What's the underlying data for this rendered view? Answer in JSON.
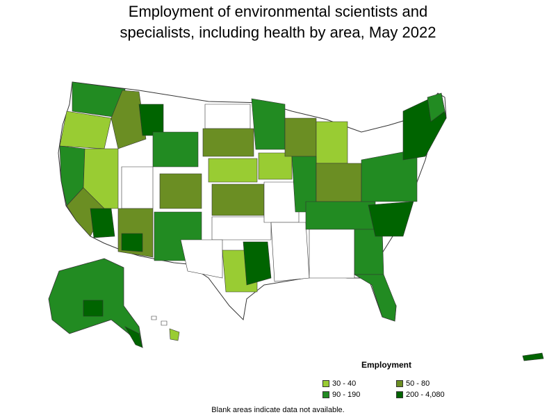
{
  "title_line1": "Employment of environmental scientists and",
  "title_line2": "specialists, including health by area, May 2022",
  "legend": {
    "title": "Employment",
    "items": [
      {
        "label": "30 - 40",
        "color": "#99cc33"
      },
      {
        "label": "50 - 80",
        "color": "#6b8e23"
      },
      {
        "label": "90 - 190",
        "color": "#228b22"
      },
      {
        "label": "200 - 4,080",
        "color": "#006400"
      }
    ]
  },
  "note": "Blank areas indicate data not available.",
  "colors": {
    "blank": "#ffffff",
    "border": "#333333"
  }
}
